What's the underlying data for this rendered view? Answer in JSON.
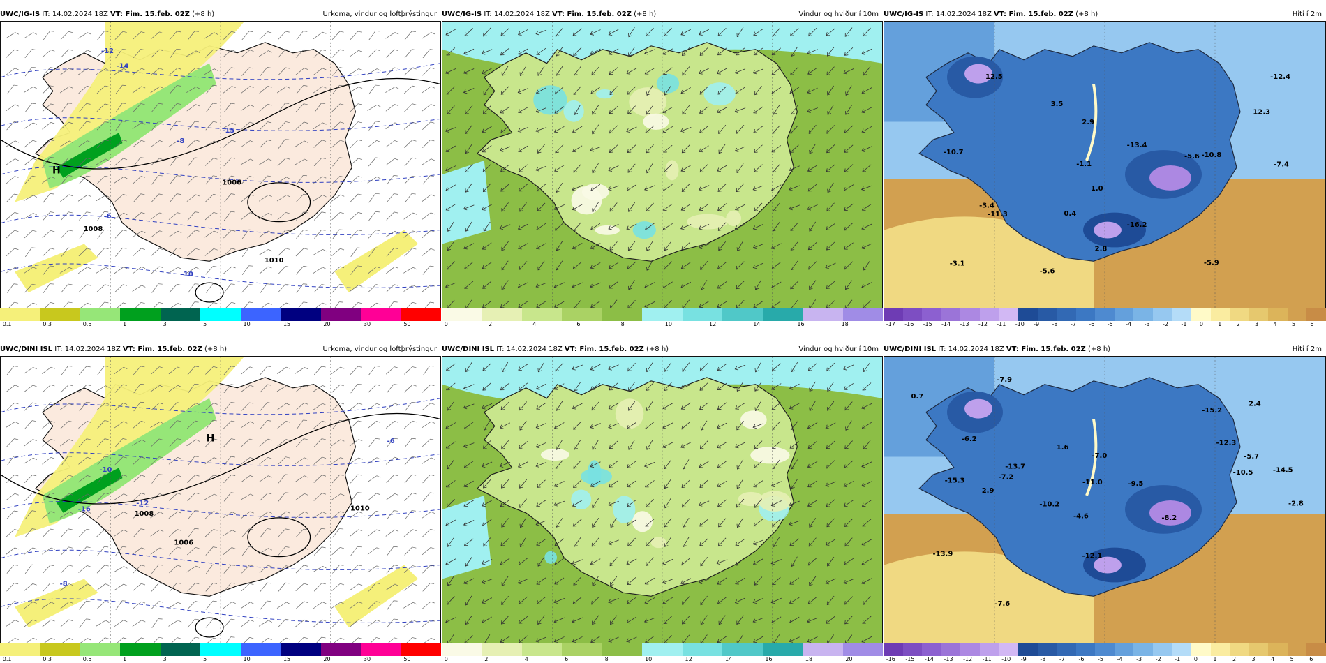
{
  "rows": [
    {
      "model": "UWC/IG-IS",
      "init": "IT: 14.02.2024 18Z",
      "valid_label": "VT:",
      "valid": "Fim. 15.feb. 02Z",
      "lead": "(+8 h)",
      "panels": [
        {
          "title": "Úrkoma, vindur og loftþrýstingur",
          "kind": "precip",
          "labels": [
            "1008",
            "1010",
            "1006",
            "H",
            "-14",
            "-12",
            "-10",
            "-8",
            "-6",
            "-15"
          ]
        },
        {
          "title": "Vindur og hviður í 10m",
          "kind": "wind"
        },
        {
          "title": "Hiti í 2m",
          "kind": "temp",
          "labels": [
            "-5.6",
            "-5.9",
            "-10.8",
            "1.0",
            "2.8",
            "3.5",
            "-1.1",
            "-3.4",
            "0.4",
            "-7.4",
            "-11.3",
            "12.5",
            "-5.6",
            "12.3",
            "-3.1",
            "-12.4",
            "-16.2",
            "2.9",
            "-10.7",
            "-13.4"
          ]
        }
      ]
    },
    {
      "model": "UWC/DINI ISL",
      "init": "IT: 14.02.2024 18Z",
      "valid_label": "VT:",
      "valid": "Fim. 15.feb. 02Z",
      "lead": "(+8 h)",
      "panels": [
        {
          "title": "Úrkoma, vindur og loftþrýstingur",
          "kind": "precip",
          "labels": [
            "1006",
            "1008",
            "1010",
            "H",
            "-16",
            "-12",
            "-10",
            "-8",
            "-6"
          ]
        },
        {
          "title": "Vindur og hviður í 10m",
          "kind": "wind"
        },
        {
          "title": "Hiti í 2m",
          "kind": "temp",
          "labels": [
            "-14.5",
            "-4.6",
            "-15.3",
            "-5.7",
            "1.6",
            "-12.1",
            "-7.6",
            "2.4",
            "-6.2",
            "-10.2",
            "-13.7",
            "-7.0",
            "-9.5",
            "-10.5",
            "-12.3",
            "-7.9",
            "-2.8",
            "-11.0",
            "-8.2",
            "0.7",
            "-15.2",
            "2.9",
            "-7.2",
            "-13.9"
          ]
        }
      ]
    }
  ],
  "colorbars": {
    "precip": {
      "colors": [
        "#f5f07a",
        "#c8c81e",
        "#96e678",
        "#00a01e",
        "#006450",
        "#00ffff",
        "#3c64ff",
        "#000080",
        "#800080",
        "#ff0096",
        "#ff0000"
      ],
      "ticks": [
        "0.1",
        "0.3",
        "0.5",
        "1",
        "3",
        "5",
        "10",
        "15",
        "20",
        "30",
        "50"
      ]
    },
    "wind": {
      "colors": [
        "#fafae6",
        "#e6f0b4",
        "#c8e68c",
        "#aad264",
        "#8cbe46",
        "#a0f0f0",
        "#78e1e1",
        "#50c8c8",
        "#28aaaa",
        "#c8b4f0",
        "#a08ce6"
      ],
      "ticks_top": [
        "0",
        "2",
        "4",
        "6",
        "8",
        "10",
        "12",
        "14",
        "16",
        "18"
      ],
      "ticks_bottom": [
        "0",
        "2",
        "4",
        "6",
        "8",
        "10",
        "12",
        "14",
        "16",
        "18",
        "20"
      ]
    },
    "temp": {
      "colors": [
        "#6e3cb4",
        "#7d4ec2",
        "#8c60d0",
        "#9b74d8",
        "#ac88e2",
        "#bea0ec",
        "#d2b8f4",
        "#1e4b96",
        "#285aa5",
        "#3269b4",
        "#3c78c3",
        "#4e8ad0",
        "#64a0dc",
        "#7ab4e6",
        "#96c8f0",
        "#b4dcf8",
        "#fffac8",
        "#faeca0",
        "#f0d982",
        "#e6c86e",
        "#dcb45a",
        "#d2a050",
        "#c88c46"
      ],
      "ticks_top": [
        "-17",
        "-16",
        "-15",
        "-14",
        "-13",
        "-12",
        "-11",
        "-10",
        "-9",
        "-8",
        "-7",
        "-6",
        "-5",
        "-4",
        "-3",
        "-2",
        "-1",
        "0",
        "1",
        "2",
        "3",
        "4",
        "5",
        "6"
      ],
      "ticks_bottom": [
        "-16",
        "-15",
        "-14",
        "-13",
        "-12",
        "-11",
        "-10",
        "-9",
        "-8",
        "-7",
        "-6",
        "-5",
        "-4",
        "-3",
        "-2",
        "-1",
        "0",
        "1",
        "2",
        "3",
        "4",
        "5",
        "6"
      ]
    }
  }
}
